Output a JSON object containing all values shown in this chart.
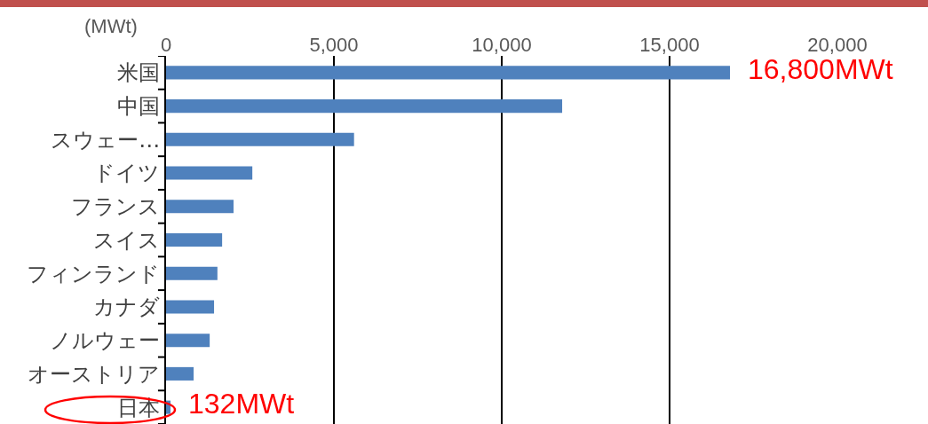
{
  "chart_data": {
    "type": "bar",
    "orientation": "horizontal",
    "xlabel": "(MWt)",
    "categories": [
      "米国",
      "中国",
      "スウェー…",
      "ドイツ",
      "フランス",
      "スイス",
      "フィンランド",
      "カナダ",
      "ノルウェー",
      "オーストリア",
      "日本"
    ],
    "values": [
      16800,
      11800,
      5600,
      2570,
      2010,
      1670,
      1530,
      1430,
      1300,
      820,
      132
    ],
    "color": "#4f81bd",
    "xlim": [
      0,
      20000
    ],
    "xticks": [
      {
        "value": 0,
        "label": "0"
      },
      {
        "value": 5000,
        "label": "5,000"
      },
      {
        "value": 10000,
        "label": "10,000"
      },
      {
        "value": 15000,
        "label": "15,000"
      },
      {
        "value": 20000,
        "label": "20,000"
      }
    ],
    "grid": "x",
    "annotations": [
      {
        "text": "16,800MWt",
        "x": 16800,
        "y": "米国"
      },
      {
        "text": "132MWt",
        "x": 132,
        "y": "日本"
      }
    ]
  }
}
